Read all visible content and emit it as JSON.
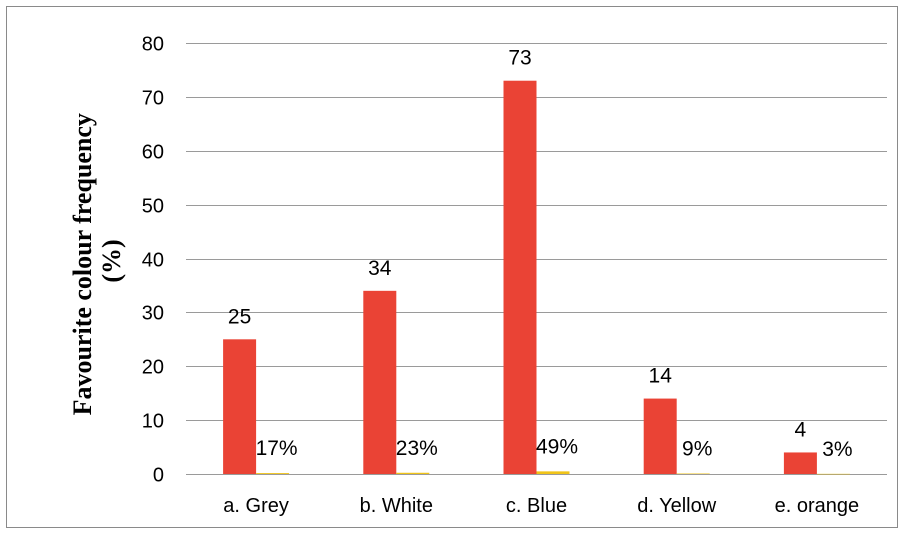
{
  "chart_data": {
    "type": "bar",
    "title": "",
    "xlabel": "",
    "ylabel": "Favourite colour frequency (%)",
    "ylabel_lines": [
      "Favourite colour frequency",
      "(%)"
    ],
    "categories": [
      "a. Grey",
      "b. White",
      "c. Blue",
      "d. Yellow",
      "e. orange"
    ],
    "yticks": [
      0,
      10,
      20,
      30,
      40,
      50,
      60,
      70,
      80
    ],
    "ylim": [
      0,
      80
    ],
    "grid": true,
    "legend": "none",
    "series": [
      {
        "values": [
          25,
          34,
          73,
          14,
          4
        ],
        "labels": [
          "25",
          "34",
          "73",
          "14",
          "4"
        ],
        "color": "#ea4335"
      },
      {
        "values": [
          0.17,
          0.23,
          0.49,
          0.09,
          0.03
        ],
        "labels": [
          "17%",
          "23%",
          "49%",
          "9%",
          "3%"
        ],
        "color": "#f0c419"
      }
    ],
    "colors": {
      "grid": "#9a9a9a",
      "frame": "#8a8a8a"
    }
  }
}
